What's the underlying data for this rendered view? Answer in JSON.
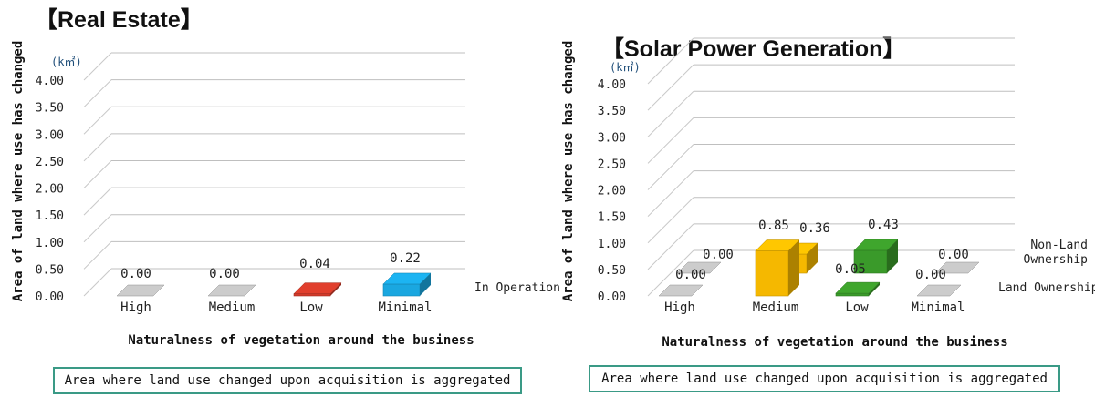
{
  "chart_data": [
    {
      "type": "bar",
      "title": "【Real Estate】",
      "ylabel": "Area of land where use has changed",
      "yunit": "(k㎡)",
      "xlabel": "Naturalness of vegetation around the business",
      "ylim": [
        0,
        4.0
      ],
      "yticks": [
        "0.00",
        "0.50",
        "1.00",
        "1.50",
        "2.00",
        "2.50",
        "3.00",
        "3.50",
        "4.00"
      ],
      "categories": [
        "High",
        "Medium",
        "Low",
        "Minimal"
      ],
      "series": [
        {
          "name": "In Operation",
          "values": [
            0.0,
            0.0,
            0.04,
            0.22
          ],
          "labels": [
            "0.00",
            "0.00",
            "0.04",
            "0.22"
          ],
          "colors": [
            "#bdbdbd",
            "#bdbdbd",
            "#d03a2a",
            "#1aa7e0"
          ]
        }
      ],
      "note": "Area where land use changed upon acquisition is aggregated"
    },
    {
      "type": "bar",
      "title": "【Solar Power Generation】",
      "ylabel": "Area of land where use has changed",
      "yunit": "(k㎡)",
      "xlabel": "Naturalness of vegetation around the business",
      "ylim": [
        0,
        4.0
      ],
      "yticks": [
        "0.00",
        "0.50",
        "1.00",
        "1.50",
        "2.00",
        "2.50",
        "3.00",
        "3.50",
        "4.00"
      ],
      "categories": [
        "High",
        "Medium",
        "Low",
        "Minimal"
      ],
      "series": [
        {
          "name": "Land Ownership",
          "values": [
            0.0,
            0.85,
            0.05,
            0.0
          ],
          "labels": [
            "0.00",
            "0.85",
            "0.05",
            "0.00"
          ],
          "colors": [
            "#bdbdbd",
            "#f5b800",
            "#3a9a2a",
            "#bdbdbd"
          ]
        },
        {
          "name": "Non-Land Ownership",
          "values": [
            0.0,
            0.36,
            0.43,
            0.0
          ],
          "labels": [
            "0.00",
            "0.36",
            "0.43",
            "0.00"
          ],
          "colors": [
            "#bdbdbd",
            "#f5b800",
            "#3a9a2a",
            "#bdbdbd"
          ]
        }
      ],
      "note": "Area where land use changed upon acquisition is aggregated"
    }
  ]
}
